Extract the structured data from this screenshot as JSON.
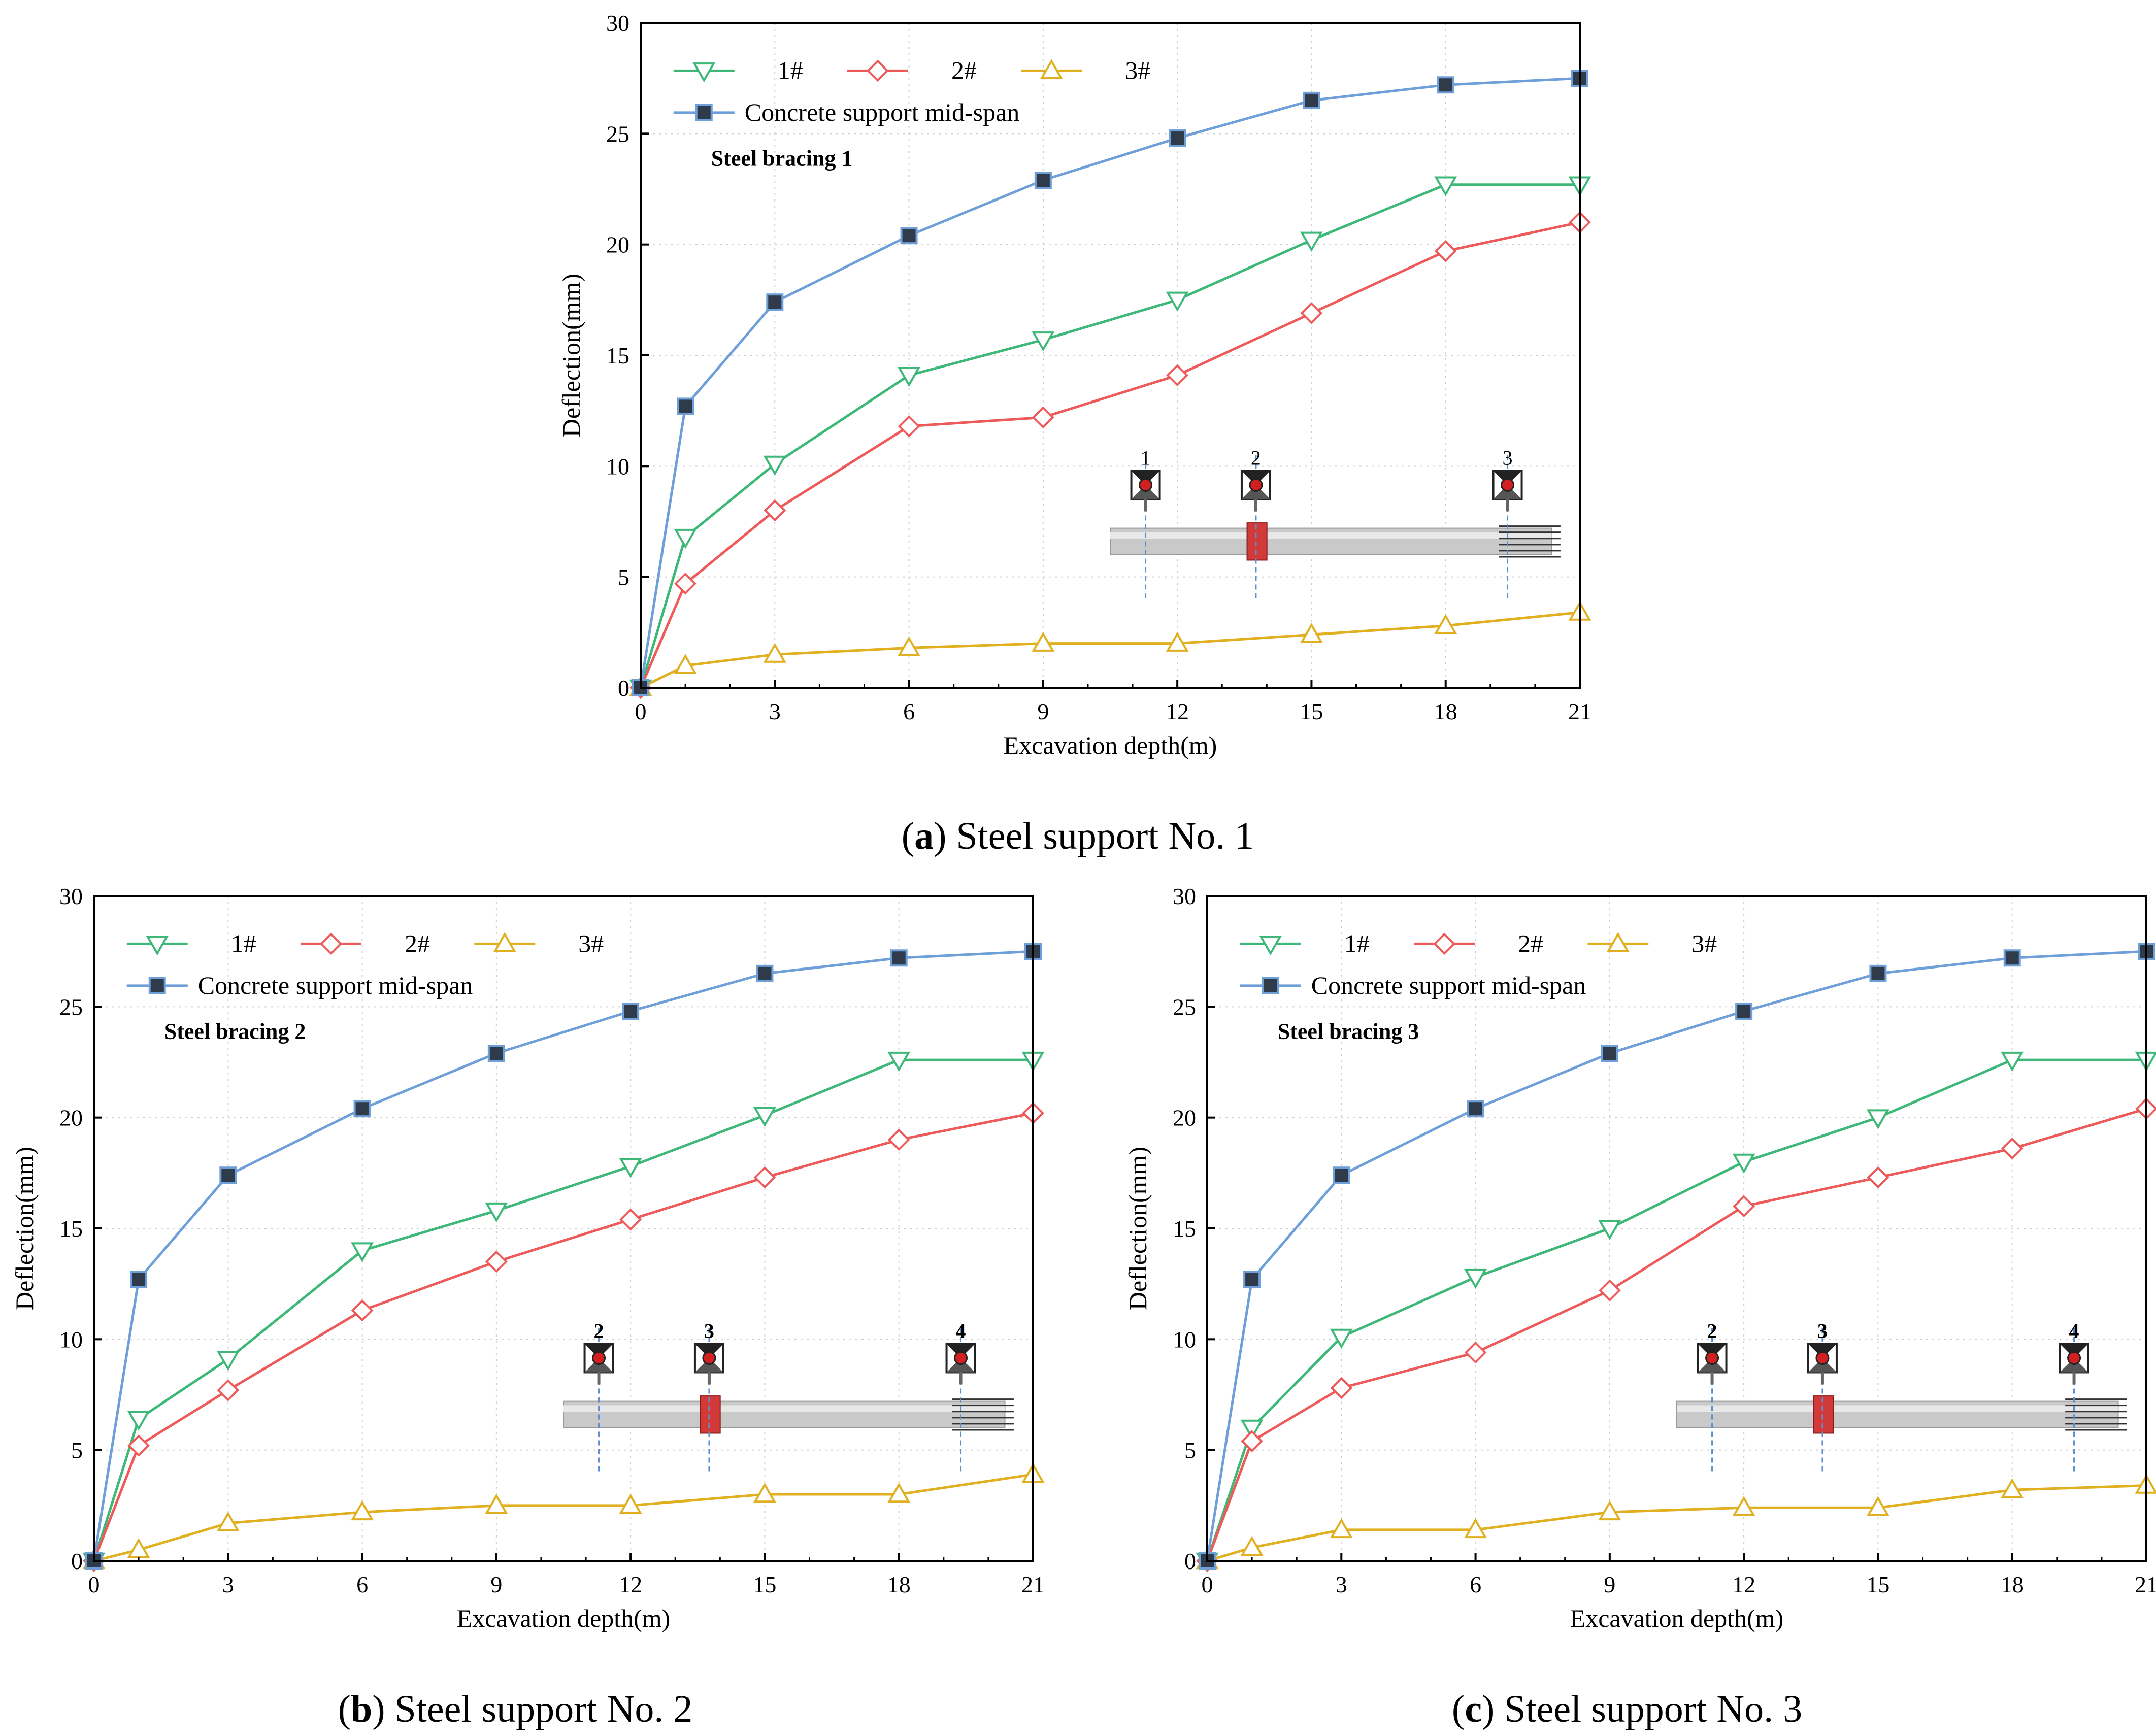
{
  "figure": {
    "captions": [
      {
        "letter": "a",
        "text": ") Steel support No. 1",
        "open": "("
      },
      {
        "letter": "b",
        "text": ") Steel support No. 2",
        "open": "("
      },
      {
        "letter": "c",
        "text": ") Steel support No. 3",
        "open": "("
      }
    ]
  },
  "colors": {
    "s1": "#3db878",
    "s2": "#ee5a5a",
    "s3": "#e0b020",
    "s4": "#6f9fd8",
    "marker4": "#2f3b4a",
    "grid": "#d0d0d0",
    "rod": "#c9c9c9",
    "red_block": "#d23a3a",
    "dash": "#5b8fd0"
  },
  "chart_data": [
    {
      "type": "line",
      "panel_label": "Steel bracing 1",
      "xlabel": "Excavation depth(m)",
      "ylabel": "Deflection(mm)",
      "xlim": [
        0,
        21
      ],
      "ylim": [
        0,
        30
      ],
      "xticks": [
        0,
        3,
        6,
        9,
        12,
        15,
        18,
        21
      ],
      "yticks": [
        0,
        5,
        10,
        15,
        20,
        25,
        30
      ],
      "x": [
        0,
        1,
        3,
        6,
        9,
        12,
        15,
        18,
        21
      ],
      "series": [
        {
          "name": "1#",
          "marker": "triangle-down",
          "values": [
            0,
            6.8,
            10.1,
            14.1,
            15.7,
            17.5,
            20.2,
            22.7,
            22.7
          ]
        },
        {
          "name": "2#",
          "marker": "diamond",
          "values": [
            0,
            4.7,
            8.0,
            11.8,
            12.2,
            14.1,
            16.9,
            19.7,
            21.0
          ]
        },
        {
          "name": "3#",
          "marker": "triangle-up",
          "values": [
            0,
            1.0,
            1.5,
            1.8,
            2.0,
            2.0,
            2.4,
            2.8,
            3.4
          ]
        },
        {
          "name": "Concrete support mid-span",
          "marker": "square",
          "values": [
            0,
            12.7,
            17.4,
            20.4,
            22.9,
            24.8,
            26.5,
            27.2,
            27.5
          ]
        }
      ],
      "inset_labels": [
        "1",
        "2",
        "3"
      ]
    },
    {
      "type": "line",
      "panel_label": "Steel bracing 2",
      "xlabel": "Excavation depth(m)",
      "ylabel": "Deflection(mm)",
      "xlim": [
        0,
        21
      ],
      "ylim": [
        0,
        30
      ],
      "xticks": [
        0,
        3,
        6,
        9,
        12,
        15,
        18,
        21
      ],
      "yticks": [
        0,
        5,
        10,
        15,
        20,
        25,
        30
      ],
      "x": [
        0,
        1,
        3,
        6,
        9,
        12,
        15,
        18,
        21
      ],
      "series": [
        {
          "name": "1#",
          "marker": "triangle-down",
          "values": [
            0,
            6.4,
            9.1,
            14.0,
            15.8,
            17.8,
            20.1,
            22.6,
            22.6
          ]
        },
        {
          "name": "2#",
          "marker": "diamond",
          "values": [
            0,
            5.2,
            7.7,
            11.3,
            13.5,
            15.4,
            17.3,
            19.0,
            20.2
          ]
        },
        {
          "name": "3#",
          "marker": "triangle-up",
          "values": [
            0,
            0.5,
            1.7,
            2.2,
            2.5,
            2.5,
            3.0,
            3.0,
            3.9
          ]
        },
        {
          "name": "Concrete support mid-span",
          "marker": "square",
          "values": [
            0,
            12.7,
            17.4,
            20.4,
            22.9,
            24.8,
            26.5,
            27.2,
            27.5
          ]
        }
      ],
      "inset_labels": [
        "2",
        "3",
        "4"
      ]
    },
    {
      "type": "line",
      "panel_label": "Steel bracing 3",
      "xlabel": "Excavation depth(m)",
      "ylabel": "Deflection(mm)",
      "xlim": [
        0,
        21
      ],
      "ylim": [
        0,
        30
      ],
      "xticks": [
        0,
        3,
        6,
        9,
        12,
        15,
        18,
        21
      ],
      "yticks": [
        0,
        5,
        10,
        15,
        20,
        25,
        30
      ],
      "x": [
        0,
        1,
        3,
        6,
        9,
        12,
        15,
        18,
        21
      ],
      "series": [
        {
          "name": "1#",
          "marker": "triangle-down",
          "values": [
            0,
            6.0,
            10.1,
            12.8,
            15.0,
            18.0,
            20.0,
            22.6,
            22.6
          ]
        },
        {
          "name": "2#",
          "marker": "diamond",
          "values": [
            0,
            5.4,
            7.8,
            9.4,
            12.2,
            16.0,
            17.3,
            18.6,
            20.4
          ]
        },
        {
          "name": "3#",
          "marker": "triangle-up",
          "values": [
            0,
            0.6,
            1.4,
            1.4,
            2.2,
            2.4,
            2.4,
            3.2,
            3.4
          ]
        },
        {
          "name": "Concrete support mid-span",
          "marker": "square",
          "values": [
            0,
            12.7,
            17.4,
            20.4,
            22.9,
            24.8,
            26.5,
            27.2,
            27.5
          ]
        }
      ],
      "inset_labels": [
        "2",
        "3",
        "4"
      ]
    }
  ]
}
